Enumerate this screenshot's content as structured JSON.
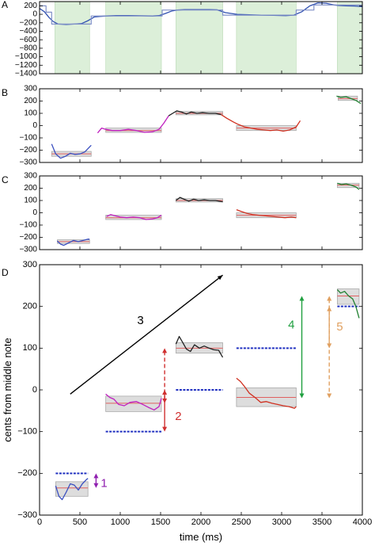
{
  "chart_data": [
    {
      "panel_label": "A",
      "type": "line",
      "xlim": [
        0,
        4000
      ],
      "ylim": [
        -1400,
        300
      ],
      "yticks": [
        200,
        0,
        -200,
        -400,
        -600,
        -800,
        -1000,
        -1200,
        -1400
      ],
      "yticklabels": [
        "200",
        "0",
        "−200",
        "−400",
        "−600",
        "−800",
        "−1000",
        "−1200",
        "−1400"
      ],
      "shaded_x_ranges": [
        [
          190,
          620
        ],
        [
          820,
          1510
        ],
        [
          1690,
          2270
        ],
        [
          2440,
          3180
        ],
        [
          3690,
          4000
        ]
      ],
      "series": [
        {
          "role": "pitch contour",
          "color": "#3050b0",
          "x": [
            0,
            60,
            120,
            170,
            230,
            330,
            430,
            520,
            600,
            680,
            820,
            950,
            1100,
            1250,
            1400,
            1480,
            1560,
            1640,
            1700,
            1800,
            1900,
            2000,
            2100,
            2200,
            2300,
            2450,
            2600,
            2750,
            2900,
            3050,
            3150,
            3250,
            3350,
            3450,
            3550,
            3650,
            3700,
            3800,
            3900,
            4000
          ],
          "y": [
            140,
            60,
            -80,
            -170,
            -230,
            -240,
            -230,
            -220,
            -150,
            -60,
            -40,
            -30,
            -30,
            -35,
            -40,
            -30,
            20,
            80,
            100,
            110,
            110,
            110,
            110,
            105,
            40,
            0,
            -10,
            -20,
            -25,
            -30,
            -20,
            60,
            200,
            270,
            260,
            220,
            210,
            200,
            195,
            180
          ]
        },
        {
          "role": "fitted step curve",
          "color": "#8090c8",
          "x": [
            0,
            80,
            80,
            150,
            150,
            640,
            640,
            1520,
            1520,
            2270,
            2270,
            3180,
            3180,
            3400,
            3400,
            4000
          ],
          "y": [
            200,
            200,
            50,
            50,
            -230,
            -230,
            -40,
            -40,
            100,
            100,
            -20,
            -20,
            100,
            100,
            220,
            220
          ]
        }
      ]
    },
    {
      "panel_label": "B",
      "type": "line",
      "xlim": [
        0,
        4000
      ],
      "ylim": [
        -300,
        300
      ],
      "yticks": [
        300,
        200,
        100,
        0,
        -100,
        -200,
        -300
      ],
      "yticklabels": [
        "300",
        "200",
        "100",
        "0",
        "−100",
        "−200",
        "−300"
      ],
      "note_boxes": [
        {
          "x0": 150,
          "x1": 640,
          "mean": -230,
          "y0": -250,
          "y1": -210
        },
        {
          "x0": 820,
          "x1": 1510,
          "mean": -40,
          "y0": -55,
          "y1": -20
        },
        {
          "x0": 1690,
          "x1": 2270,
          "mean": 100,
          "y0": 88,
          "y1": 115
        },
        {
          "x0": 2440,
          "x1": 3180,
          "mean": -20,
          "y0": -40,
          "y1": 0
        },
        {
          "x0": 3700,
          "x1": 3940,
          "mean": 220,
          "y0": 205,
          "y1": 240
        }
      ],
      "series": [
        {
          "color": "#3a4fc0",
          "x": [
            150,
            200,
            260,
            320,
            380,
            440,
            500,
            560,
            640
          ],
          "y": [
            -150,
            -230,
            -265,
            -250,
            -225,
            -235,
            -230,
            -215,
            -160
          ]
        },
        {
          "color": "#c020c0",
          "x": [
            720,
            770,
            820,
            900,
            1000,
            1100,
            1200,
            1300,
            1400,
            1480,
            1540,
            1600
          ],
          "y": [
            -60,
            -20,
            -30,
            -40,
            -40,
            -30,
            -40,
            -55,
            -50,
            -30,
            20,
            80
          ]
        },
        {
          "color": "#202020",
          "x": [
            1600,
            1650,
            1700,
            1760,
            1820,
            1880,
            1950,
            2020,
            2100,
            2180,
            2250
          ],
          "y": [
            80,
            100,
            120,
            110,
            95,
            110,
            100,
            105,
            100,
            100,
            90
          ]
        },
        {
          "color": "#d03020",
          "x": [
            2250,
            2320,
            2400,
            2460,
            2540,
            2620,
            2700,
            2780,
            2860,
            2940,
            3020,
            3100,
            3180,
            3230
          ],
          "y": [
            90,
            60,
            30,
            10,
            -10,
            -20,
            -30,
            -35,
            -40,
            -35,
            -45,
            -35,
            -10,
            40
          ]
        },
        {
          "color": "#208030",
          "x": [
            3680,
            3730,
            3800,
            3860,
            3920,
            3980
          ],
          "y": [
            240,
            230,
            235,
            220,
            205,
            180
          ]
        }
      ]
    },
    {
      "panel_label": "C",
      "type": "line",
      "xlim": [
        0,
        4000
      ],
      "ylim": [
        -300,
        300
      ],
      "yticks": [
        300,
        200,
        100,
        0,
        -100,
        -200,
        -300
      ],
      "yticklabels": [
        "300",
        "200",
        "100",
        "0",
        "−100",
        "−200",
        "−300"
      ],
      "note_boxes": [
        {
          "x0": 220,
          "x1": 620,
          "mean": -235,
          "y0": -250,
          "y1": -220
        },
        {
          "x0": 820,
          "x1": 1510,
          "mean": -40,
          "y0": -55,
          "y1": -20
        },
        {
          "x0": 1690,
          "x1": 2270,
          "mean": 100,
          "y0": 88,
          "y1": 115
        },
        {
          "x0": 2440,
          "x1": 3180,
          "mean": -20,
          "y0": -40,
          "y1": 0
        },
        {
          "x0": 3690,
          "x1": 3960,
          "mean": 225,
          "y0": 205,
          "y1": 240
        }
      ],
      "series": [
        {
          "color": "#3a4fc0",
          "x": [
            220,
            260,
            300,
            360,
            420,
            480,
            540,
            600,
            620
          ],
          "y": [
            -230,
            -255,
            -265,
            -245,
            -225,
            -235,
            -225,
            -215,
            -215
          ]
        },
        {
          "color": "#c020c0",
          "x": [
            830,
            880,
            940,
            1000,
            1080,
            1160,
            1240,
            1320,
            1400,
            1460,
            1510
          ],
          "y": [
            -30,
            -15,
            -25,
            -35,
            -40,
            -35,
            -40,
            -55,
            -50,
            -40,
            -20
          ]
        },
        {
          "color": "#202020",
          "x": [
            1690,
            1740,
            1790,
            1850,
            1910,
            1970,
            2040,
            2110,
            2180,
            2270
          ],
          "y": [
            100,
            125,
            110,
            95,
            110,
            100,
            105,
            100,
            100,
            90
          ]
        },
        {
          "color": "#d03020",
          "x": [
            2440,
            2500,
            2570,
            2640,
            2720,
            2800,
            2880,
            2960,
            3040,
            3120,
            3180
          ],
          "y": [
            25,
            10,
            -5,
            -15,
            -20,
            -25,
            -30,
            -35,
            -40,
            -35,
            -40
          ]
        },
        {
          "color": "#208030",
          "x": [
            3690,
            3740,
            3800,
            3860,
            3920,
            3960
          ],
          "y": [
            240,
            230,
            235,
            225,
            210,
            190
          ]
        }
      ]
    },
    {
      "panel_label": "D",
      "type": "line",
      "xlabel": "time (ms)",
      "ylabel": "cents from middle note",
      "xlim": [
        0,
        4000
      ],
      "ylim": [
        -300,
        300
      ],
      "xticks": [
        0,
        500,
        1000,
        1500,
        2000,
        2500,
        3000,
        3500,
        4000
      ],
      "xticklabels": [
        "0",
        "500",
        "1000",
        "1500",
        "2000",
        "2500",
        "3000",
        "3500",
        "4000"
      ],
      "yticks": [
        300,
        200,
        100,
        0,
        -100,
        -200,
        -300
      ],
      "yticklabels": [
        "300",
        "200",
        "100",
        "0",
        "−100",
        "−200",
        "−300"
      ],
      "note_boxes": [
        {
          "x0": 200,
          "x1": 600,
          "mean": -235,
          "y0": -255,
          "y1": -220
        },
        {
          "x0": 820,
          "x1": 1510,
          "mean": -32,
          "y0": -52,
          "y1": -15
        },
        {
          "x0": 1690,
          "x1": 2270,
          "mean": 100,
          "y0": 88,
          "y1": 113
        },
        {
          "x0": 2440,
          "x1": 3180,
          "mean": -18,
          "y0": -40,
          "y1": 5
        },
        {
          "x0": 3690,
          "x1": 3960,
          "mean": 225,
          "y0": 205,
          "y1": 242
        }
      ],
      "reference_lines": [
        {
          "x0": 200,
          "x1": 600,
          "y": -200,
          "color": "#2030c0"
        },
        {
          "x0": 820,
          "x1": 1510,
          "y": -100,
          "color": "#2030c0"
        },
        {
          "x0": 1690,
          "x1": 2270,
          "y": 0,
          "color": "#2030c0"
        },
        {
          "x0": 2440,
          "x1": 3180,
          "y": 100,
          "color": "#2030c0"
        },
        {
          "x0": 3690,
          "x1": 3960,
          "y": 200,
          "color": "#2030c0"
        }
      ],
      "series": [
        {
          "color": "#3a4fc0",
          "x": [
            200,
            240,
            280,
            330,
            380,
            430,
            480,
            530,
            580,
            600
          ],
          "y": [
            -230,
            -255,
            -263,
            -245,
            -225,
            -228,
            -240,
            -225,
            -215,
            -212
          ]
        },
        {
          "color": "#c020c0",
          "x": [
            820,
            870,
            920,
            980,
            1050,
            1120,
            1200,
            1280,
            1350,
            1420,
            1480,
            1510
          ],
          "y": [
            -10,
            -18,
            -22,
            -35,
            -38,
            -30,
            -28,
            -35,
            -42,
            -48,
            -40,
            -20
          ]
        },
        {
          "color": "#202020",
          "x": [
            1690,
            1730,
            1770,
            1820,
            1870,
            1920,
            1980,
            2040,
            2100,
            2160,
            2220,
            2270
          ],
          "y": [
            110,
            128,
            115,
            98,
            92,
            108,
            100,
            105,
            100,
            96,
            95,
            78
          ]
        },
        {
          "color": "#d03020",
          "x": [
            2440,
            2490,
            2540,
            2600,
            2670,
            2740,
            2810,
            2880,
            2950,
            3020,
            3090,
            3160,
            3180
          ],
          "y": [
            28,
            20,
            8,
            -8,
            -18,
            -30,
            -28,
            -32,
            -35,
            -38,
            -40,
            -44,
            -40
          ]
        },
        {
          "color": "#208030",
          "x": [
            3690,
            3730,
            3780,
            3830,
            3880,
            3920,
            3960
          ],
          "y": [
            240,
            232,
            236,
            225,
            218,
            200,
            172
          ]
        }
      ],
      "annotations": [
        {
          "label": "1",
          "color": "#9020b0",
          "x": 700,
          "y0": -235,
          "y1": -200,
          "dashed": false,
          "label_x": 800,
          "label_y": -225
        },
        {
          "label": "2",
          "color": "#d03030",
          "x": 1550,
          "y0": -100,
          "y1": 0,
          "dashed": false,
          "label_x": 1720,
          "label_y": -65
        },
        {
          "label": "2",
          "color": "#d03030",
          "x": 1550,
          "y0": -32,
          "y1": 100,
          "dashed": true,
          "hide_label": true
        },
        {
          "label": "3",
          "color": "#000000",
          "arrow": true,
          "x0": 380,
          "y0": -10,
          "x1": 2270,
          "y1": 275,
          "label_x": 1250,
          "label_y": 165
        },
        {
          "label": "4",
          "color": "#20a040",
          "x": 3250,
          "y0": -20,
          "y1": 225,
          "dashed": false,
          "label_x": 3120,
          "label_y": 155
        },
        {
          "label": "5",
          "color": "#e0a060",
          "x": 3590,
          "y0": -20,
          "y1": 225,
          "dashed": true,
          "label_x": 3720,
          "label_y": 150
        },
        {
          "label": "5",
          "color": "#e0a060",
          "x": 3590,
          "y0": 100,
          "y1": 200,
          "dashed": true,
          "hide_label": true
        }
      ]
    }
  ]
}
